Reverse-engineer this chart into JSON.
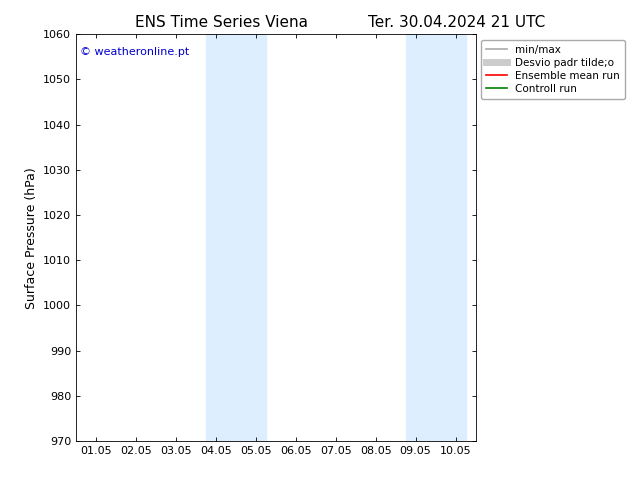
{
  "title_left": "ENS Time Series Viena",
  "title_right": "Ter. 30.04.2024 21 UTC",
  "ylabel": "Surface Pressure (hPa)",
  "ylim": [
    970,
    1060
  ],
  "yticks": [
    970,
    980,
    990,
    1000,
    1010,
    1020,
    1030,
    1040,
    1050,
    1060
  ],
  "xtick_positions": [
    1,
    2,
    3,
    4,
    5,
    6,
    7,
    8,
    9,
    10
  ],
  "xtick_labels": [
    "01.05",
    "02.05",
    "03.05",
    "04.05",
    "05.05",
    "06.05",
    "07.05",
    "08.05",
    "09.05",
    "10.05"
  ],
  "xlim": [
    0.5,
    10.5
  ],
  "shaded_regions": [
    {
      "x_start": 3.75,
      "x_end": 5.25
    },
    {
      "x_start": 8.75,
      "x_end": 10.25
    }
  ],
  "shaded_color": "#ddeeff",
  "watermark_text": "© weatheronline.pt",
  "watermark_color": "#0000cc",
  "legend_entries": [
    {
      "label": "min/max",
      "color": "#aaaaaa",
      "lw": 1.2,
      "style": "solid"
    },
    {
      "label": "Desvio padr tilde;o",
      "color": "#cccccc",
      "lw": 5,
      "style": "solid"
    },
    {
      "label": "Ensemble mean run",
      "color": "#ff0000",
      "lw": 1.2,
      "style": "solid"
    },
    {
      "label": "Controll run",
      "color": "#008000",
      "lw": 1.2,
      "style": "solid"
    }
  ],
  "bg_color": "#ffffff",
  "title_fontsize": 11,
  "ylabel_fontsize": 9,
  "tick_fontsize": 8,
  "watermark_fontsize": 8,
  "legend_fontsize": 7.5
}
